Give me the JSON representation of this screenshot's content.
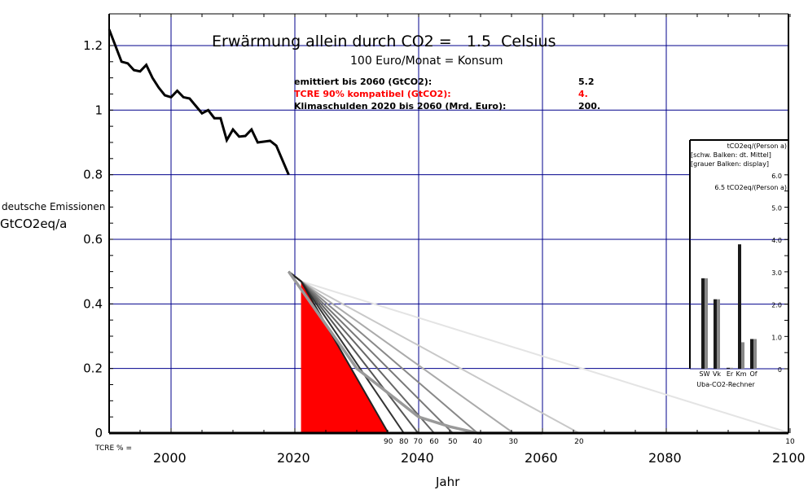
{
  "chart_data": {
    "type": "line",
    "title": "Erwärmung allein durch CO2 =   1.5  Celsius",
    "subtitle": "100 Euro/Monat = Konsum",
    "xlabel": "Jahr",
    "ylabel_line1": "deutsche Emissionen",
    "ylabel_line2": "GtCO2eq/a",
    "xlim": [
      1990,
      2100
    ],
    "ylim": [
      0,
      1.3
    ],
    "grid": true,
    "x_ticks": [
      "2000",
      "2020",
      "2040",
      "2060",
      "2080",
      "2100"
    ],
    "y_ticks": [
      "0",
      "0.2",
      "0.4",
      "0.6",
      "0.8",
      "1",
      "1.2"
    ],
    "info": [
      {
        "label": "emittiert bis 2060 (GtCO2):",
        "value": "5.2",
        "color": "#000000"
      },
      {
        "label": "TCRE 90% kompatibel (GtCO2):",
        "value": "4.",
        "color": "#ff0000"
      },
      {
        "label": "Klimaschulden 2020 bis 2060 (Mrd. Euro):",
        "value": "200.",
        "color": "#000000"
      }
    ],
    "history": {
      "x": [
        1990,
        1992,
        1993,
        1994,
        1995,
        1996,
        1997,
        1998,
        1999,
        2000,
        2001,
        2002,
        2003,
        2004,
        2005,
        2006,
        2007,
        2008,
        2009,
        2010,
        2011,
        2012,
        2013,
        2014,
        2016,
        2017,
        2018,
        2019
      ],
      "y": [
        1.25,
        1.15,
        1.145,
        1.124,
        1.12,
        1.14,
        1.1,
        1.07,
        1.046,
        1.04,
        1.06,
        1.04,
        1.036,
        1.013,
        0.99,
        1.0,
        0.975,
        0.975,
        0.907,
        0.94,
        0.918,
        0.92,
        0.94,
        0.9,
        0.905,
        0.89,
        0.845,
        0.8
      ]
    },
    "tcre_label": "TCRE % =",
    "pathways": [
      {
        "tcre": "90",
        "zero_year": 2035.1,
        "color": "#222222"
      },
      {
        "tcre": "80",
        "zero_year": 2037.6,
        "color": "#333333"
      },
      {
        "tcre": "70",
        "zero_year": 2039.9,
        "color": "#555555"
      },
      {
        "tcre": "60",
        "zero_year": 2042.5,
        "color": "#666666"
      },
      {
        "tcre": "50",
        "zero_year": 2045.5,
        "color": "#777777"
      },
      {
        "tcre": "40",
        "zero_year": 2049.5,
        "color": "#888888"
      },
      {
        "tcre": "30",
        "zero_year": 2055.3,
        "color": "#aaaaaa"
      },
      {
        "tcre": "20",
        "zero_year": 2065.9,
        "color": "#c8c8c8"
      },
      {
        "tcre": "10",
        "zero_year": 2100,
        "color": "#e4e4e4"
      }
    ],
    "start_point": {
      "x": 2019,
      "y": 0.5
    },
    "fan_point": {
      "x": 2021,
      "y": 0.47
    },
    "selected_path": {
      "x": [
        2019,
        2030,
        2040,
        2045,
        2049.5,
        2060
      ],
      "y": [
        0.5,
        0.2,
        0.05,
        0.02,
        0,
        0
      ],
      "color": "#999999"
    },
    "red_area": {
      "x": [
        2021,
        2021,
        2035.1
      ],
      "y": [
        0,
        0.47,
        0
      ],
      "color": "#ff0000"
    },
    "inset": {
      "header": [
        "tCO2eq/(Person a)",
        "[schw. Balken: dt. Mittel]",
        "[grauer Balken: display]"
      ],
      "note": "6.5 tCO2eq/(Person a)",
      "ylim": [
        0,
        6.0
      ],
      "y_ticks": [
        "0",
        "1.0",
        "2.0",
        "3.0",
        "4.0",
        "5.0",
        "6.0"
      ],
      "categories": [
        "SW",
        "Vk",
        "Er",
        "Km",
        "Of"
      ],
      "caption": "Uba-CO2-Rechner",
      "series": [
        {
          "name": "dt. Mittel",
          "color": "#1a1a1a",
          "values": [
            2.8,
            2.15,
            0.03,
            3.85,
            0.92
          ]
        },
        {
          "name": "display",
          "color": "#888888",
          "values": [
            2.8,
            2.15,
            0.03,
            0.82,
            0.92
          ]
        }
      ]
    }
  }
}
